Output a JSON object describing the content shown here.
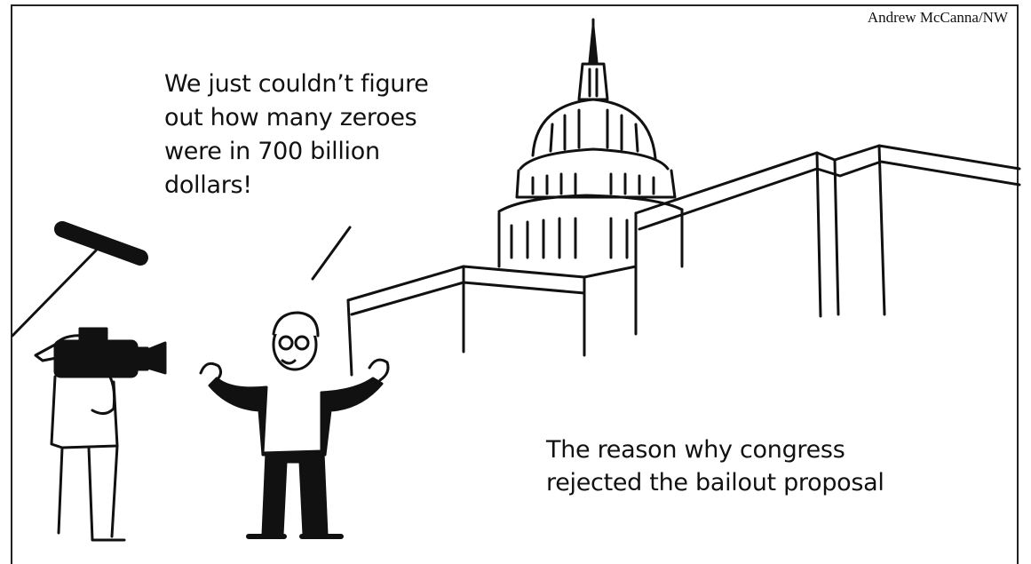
{
  "cartoon": {
    "credit": "Andrew McCanna/NW",
    "speech_bubble": "We just couldn’t figure\nout how many zeroes\nwere in 700 billion\ndollars!",
    "caption": "The reason why congress\nrejected the bailout proposal"
  },
  "scene": {
    "line_color": "#111111",
    "background_color": "#ffffff"
  }
}
